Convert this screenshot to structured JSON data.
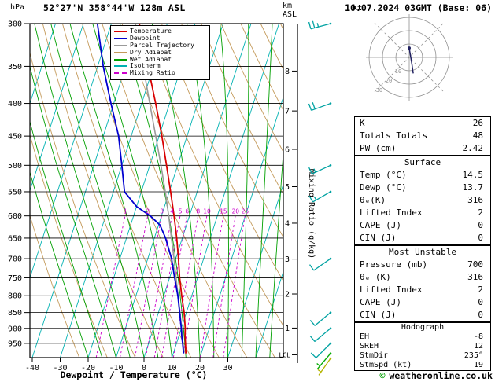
{
  "header": {
    "pressure_unit": "hPa",
    "station": "52°27'N 358°44'W 128m ASL",
    "datetime": "10.07.2024 03GMT (Base: 06)",
    "alt_unit_top": "km",
    "alt_unit_sub": "ASL",
    "copyright_symbol": "©",
    "copyright_text": "weatheronline.co.uk"
  },
  "colors": {
    "temp": "#d80000",
    "dew": "#0000d0",
    "parcel": "#9a9a9a",
    "dry": "#c49a5a",
    "wet": "#00a000",
    "iso": "#00b2b2",
    "mix": "#cc00cc",
    "grid": "#000000",
    "barb": "#00a2a2",
    "barb_low": "#00aa00",
    "barb_sfc": "#b4b400",
    "hodo": "#909090",
    "trace": "#202060",
    "copyright_green": "#00a000"
  },
  "legend": [
    {
      "label": "Temperature",
      "color_key": "temp",
      "dash": "solid"
    },
    {
      "label": "Dewpoint",
      "color_key": "dew",
      "dash": "solid"
    },
    {
      "label": "Parcel Trajectory",
      "color_key": "parcel",
      "dash": "solid"
    },
    {
      "label": "Dry Adiabat",
      "color_key": "dry",
      "dash": "solid"
    },
    {
      "label": "Wet Adiabat",
      "color_key": "wet",
      "dash": "solid"
    },
    {
      "label": "Isotherm",
      "color_key": "iso",
      "dash": "solid"
    },
    {
      "label": "Mixing Ratio",
      "color_key": "mix",
      "dash": "dashed"
    }
  ],
  "axes": {
    "pressure_ticks": [
      300,
      350,
      400,
      450,
      500,
      550,
      600,
      650,
      700,
      750,
      800,
      850,
      900,
      950
    ],
    "temp_ticks": [
      -40,
      -30,
      -20,
      -10,
      0,
      10,
      20,
      30
    ],
    "km_ticks": [
      8,
      7,
      6,
      5,
      4,
      3,
      2,
      1
    ],
    "lcl_label": "LCL",
    "xlabel": "Dewpoint / Temperature (°C)",
    "mixing_label": "Mixing Ratio (g/kg)",
    "mixing_values": [
      1,
      2,
      3,
      4,
      5,
      6,
      8,
      10,
      15,
      20,
      25
    ]
  },
  "chart_data": {
    "type": "line",
    "title": "Skew-T log-P sounding 52°27'N 358°44'W 128m ASL 10.07.2024 03GMT (Base: 06)",
    "x_axis": {
      "label": "Dewpoint / Temperature (°C)",
      "range": [
        -40,
        40
      ]
    },
    "y_axis": {
      "label": "hPa",
      "scale": "log",
      "range": [
        1000,
        300
      ]
    },
    "series": [
      {
        "name": "Parcel Trajectory",
        "color_key": "parcel",
        "width": 1.6,
        "points": [
          [
            985,
            14.5
          ],
          [
            974,
            13.5
          ],
          [
            950,
            12.3
          ],
          [
            900,
            10.1
          ],
          [
            850,
            7.7
          ],
          [
            800,
            5.1
          ],
          [
            750,
            2.3
          ],
          [
            700,
            -0.6
          ],
          [
            650,
            -3.9
          ],
          [
            600,
            -7.4
          ],
          [
            550,
            -11.4
          ],
          [
            500,
            -16.0
          ],
          [
            450,
            -21.2
          ],
          [
            400,
            -27.1
          ],
          [
            350,
            -33.7
          ],
          [
            300,
            -41.4
          ]
        ]
      },
      {
        "name": "Temperature",
        "color_key": "temp",
        "width": 1.8,
        "points": [
          [
            985,
            14.5
          ],
          [
            950,
            13.2
          ],
          [
            925,
            12.2
          ],
          [
            900,
            11.4
          ],
          [
            850,
            9.2
          ],
          [
            800,
            6.4
          ],
          [
            750,
            3.6
          ],
          [
            700,
            1.0
          ],
          [
            650,
            -2.0
          ],
          [
            600,
            -5.5
          ],
          [
            550,
            -9.5
          ],
          [
            500,
            -14.0
          ],
          [
            450,
            -19.0
          ],
          [
            400,
            -25.0
          ],
          [
            350,
            -32.0
          ],
          [
            300,
            -40.0
          ]
        ]
      },
      {
        "name": "Dewpoint",
        "color_key": "dew",
        "width": 1.8,
        "points": [
          [
            985,
            13.7
          ],
          [
            950,
            12.2
          ],
          [
            925,
            11.0
          ],
          [
            900,
            10.0
          ],
          [
            850,
            7.6
          ],
          [
            800,
            5.0
          ],
          [
            750,
            1.8
          ],
          [
            700,
            -1.5
          ],
          [
            650,
            -6.0
          ],
          [
            620,
            -9.5
          ],
          [
            600,
            -14.0
          ],
          [
            580,
            -20.0
          ],
          [
            550,
            -26.0
          ],
          [
            500,
            -30.0
          ],
          [
            450,
            -34.5
          ],
          [
            400,
            -41.0
          ],
          [
            350,
            -48.0
          ],
          [
            300,
            -55.0
          ]
        ]
      }
    ],
    "wind_barbs": [
      {
        "p": 300,
        "speed_kt": 25,
        "dir_deg": 255,
        "color_key": "barb"
      },
      {
        "p": 400,
        "speed_kt": 20,
        "dir_deg": 250,
        "color_key": "barb"
      },
      {
        "p": 500,
        "speed_kt": 15,
        "dir_deg": 245,
        "color_key": "barb"
      },
      {
        "p": 550,
        "speed_kt": 15,
        "dir_deg": 240,
        "color_key": "barb"
      },
      {
        "p": 700,
        "speed_kt": 10,
        "dir_deg": 235,
        "color_key": "barb"
      },
      {
        "p": 850,
        "speed_kt": 10,
        "dir_deg": 230,
        "color_key": "barb"
      },
      {
        "p": 900,
        "speed_kt": 10,
        "dir_deg": 230,
        "color_key": "barb"
      },
      {
        "p": 950,
        "speed_kt": 10,
        "dir_deg": 225,
        "color_key": "barb"
      },
      {
        "p": 985,
        "speed_kt": 5,
        "dir_deg": 220,
        "color_key": "barb_low"
      },
      {
        "p": 1003,
        "speed_kt": 5,
        "dir_deg": 215,
        "color_key": "barb_sfc"
      }
    ]
  },
  "hodograph": {
    "kt_label": "kt",
    "rings_kt": [
      10,
      20,
      30
    ],
    "ring_labels": [
      "10",
      "20",
      "30"
    ],
    "trace_uv_kt": [
      [
        0,
        7
      ],
      [
        1,
        1
      ],
      [
        2,
        -5
      ],
      [
        3,
        -12
      ]
    ]
  },
  "panel": {
    "sections": [
      {
        "id": "indices",
        "title": null,
        "rows": [
          [
            "K",
            "26"
          ],
          [
            "Totals Totals",
            "48"
          ],
          [
            "PW (cm)",
            "2.42"
          ]
        ]
      },
      {
        "id": "surface",
        "title": "Surface",
        "rows": [
          [
            "Temp (°C)",
            "14.5"
          ],
          [
            "Dewp (°C)",
            "13.7"
          ],
          [
            "θₑ(K)",
            "316"
          ],
          [
            "Lifted Index",
            "2"
          ],
          [
            "CAPE (J)",
            "0"
          ],
          [
            "CIN (J)",
            "0"
          ]
        ]
      },
      {
        "id": "most-unstable",
        "title": "Most Unstable",
        "rows": [
          [
            "Pressure (mb)",
            "700"
          ],
          [
            "θₑ (K)",
            "316"
          ],
          [
            "Lifted Index",
            "2"
          ],
          [
            "CAPE (J)",
            "0"
          ],
          [
            "CIN (J)",
            "0"
          ]
        ]
      },
      {
        "id": "hodograph",
        "title": "Hodograph",
        "rows": [
          [
            "EH",
            "-8"
          ],
          [
            "SREH",
            "12"
          ],
          [
            "StmDir",
            "235°"
          ],
          [
            "StmSpd (kt)",
            "19"
          ]
        ]
      }
    ]
  }
}
